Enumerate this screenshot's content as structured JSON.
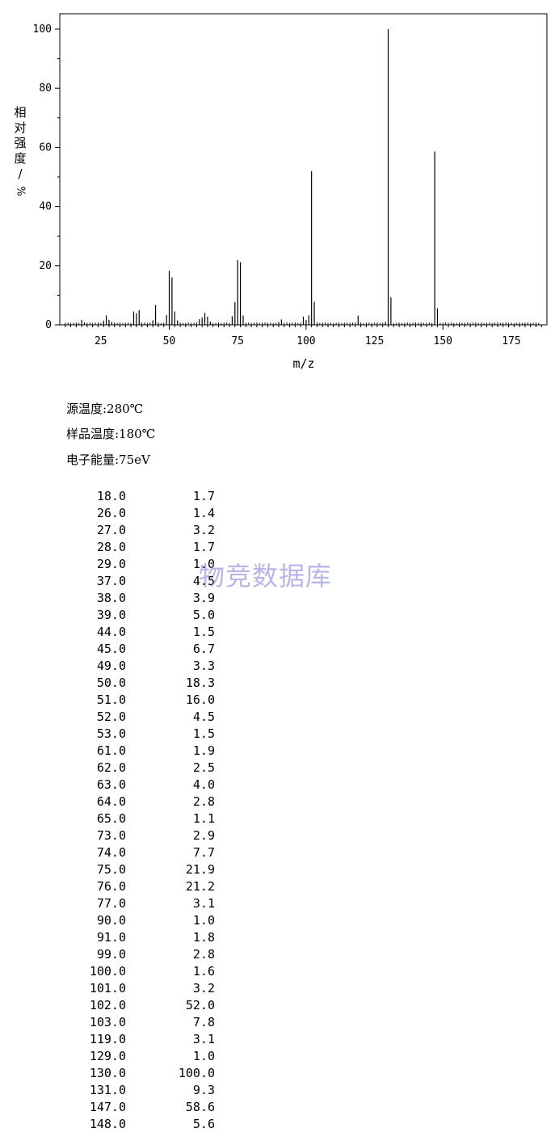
{
  "chart_data": {
    "type": "bar",
    "xlabel": "m/z",
    "ylabel": "相对强度/%",
    "xlim": [
      10,
      188
    ],
    "ylim": [
      0,
      100
    ],
    "x_ticks": [
      25,
      50,
      75,
      100,
      125,
      150,
      175
    ],
    "y_ticks": [
      0,
      20,
      40,
      60,
      80,
      100
    ],
    "grid": false,
    "peaks": [
      {
        "mz": "18.0",
        "intensity": "1.7"
      },
      {
        "mz": "26.0",
        "intensity": "1.4"
      },
      {
        "mz": "27.0",
        "intensity": "3.2"
      },
      {
        "mz": "28.0",
        "intensity": "1.7"
      },
      {
        "mz": "29.0",
        "intensity": "1.0"
      },
      {
        "mz": "37.0",
        "intensity": "4.5"
      },
      {
        "mz": "38.0",
        "intensity": "3.9"
      },
      {
        "mz": "39.0",
        "intensity": "5.0"
      },
      {
        "mz": "44.0",
        "intensity": "1.5"
      },
      {
        "mz": "45.0",
        "intensity": "6.7"
      },
      {
        "mz": "49.0",
        "intensity": "3.3"
      },
      {
        "mz": "50.0",
        "intensity": "18.3"
      },
      {
        "mz": "51.0",
        "intensity": "16.0"
      },
      {
        "mz": "52.0",
        "intensity": "4.5"
      },
      {
        "mz": "53.0",
        "intensity": "1.5"
      },
      {
        "mz": "61.0",
        "intensity": "1.9"
      },
      {
        "mz": "62.0",
        "intensity": "2.5"
      },
      {
        "mz": "63.0",
        "intensity": "4.0"
      },
      {
        "mz": "64.0",
        "intensity": "2.8"
      },
      {
        "mz": "65.0",
        "intensity": "1.1"
      },
      {
        "mz": "73.0",
        "intensity": "2.9"
      },
      {
        "mz": "74.0",
        "intensity": "7.7"
      },
      {
        "mz": "75.0",
        "intensity": "21.9"
      },
      {
        "mz": "76.0",
        "intensity": "21.2"
      },
      {
        "mz": "77.0",
        "intensity": "3.1"
      },
      {
        "mz": "90.0",
        "intensity": "1.0"
      },
      {
        "mz": "91.0",
        "intensity": "1.8"
      },
      {
        "mz": "99.0",
        "intensity": "2.8"
      },
      {
        "mz": "100.0",
        "intensity": "1.6"
      },
      {
        "mz": "101.0",
        "intensity": "3.2"
      },
      {
        "mz": "102.0",
        "intensity": "52.0"
      },
      {
        "mz": "103.0",
        "intensity": "7.8"
      },
      {
        "mz": "119.0",
        "intensity": "3.1"
      },
      {
        "mz": "129.0",
        "intensity": "1.0"
      },
      {
        "mz": "130.0",
        "intensity": "100.0"
      },
      {
        "mz": "131.0",
        "intensity": "9.3"
      },
      {
        "mz": "147.0",
        "intensity": "58.6"
      },
      {
        "mz": "148.0",
        "intensity": "5.6"
      }
    ]
  },
  "conditions": {
    "source_temp": "源温度:280℃",
    "sample_temp": "样品温度:180℃",
    "electron_energy": "电子能量:75eV"
  },
  "watermark": "物竞数据库"
}
